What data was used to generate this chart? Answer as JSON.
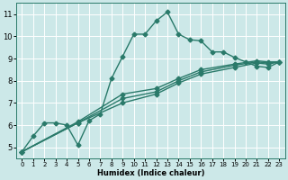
{
  "xlabel": "Humidex (Indice chaleur)",
  "bg_color": "#cce8e8",
  "grid_color": "#ffffff",
  "line_color": "#2a7a6a",
  "xlim": [
    -0.5,
    23.5
  ],
  "ylim": [
    4.5,
    11.5
  ],
  "xticks": [
    0,
    1,
    2,
    3,
    4,
    5,
    6,
    7,
    8,
    9,
    10,
    11,
    12,
    13,
    14,
    15,
    16,
    17,
    18,
    19,
    20,
    21,
    22,
    23
  ],
  "yticks": [
    5,
    6,
    7,
    8,
    9,
    10,
    11
  ],
  "series": [
    {
      "x": [
        0,
        1,
        2,
        3,
        4,
        5,
        6,
        7,
        8,
        9,
        10,
        11,
        12,
        13,
        14,
        15,
        16,
        17,
        18,
        19,
        20,
        21,
        22,
        23
      ],
      "y": [
        4.8,
        5.5,
        6.1,
        6.1,
        6.0,
        5.1,
        6.2,
        6.5,
        8.1,
        9.1,
        10.1,
        10.1,
        10.7,
        11.1,
        10.1,
        9.85,
        9.8,
        9.3,
        9.3,
        9.05,
        8.85,
        8.65,
        8.6,
        8.85
      ],
      "marker": true
    },
    {
      "x": [
        0,
        23
      ],
      "y": [
        4.8,
        8.85
      ],
      "marker": false
    },
    {
      "x": [
        0,
        23
      ],
      "y": [
        4.8,
        8.85
      ],
      "marker": false
    },
    {
      "x": [
        0,
        23
      ],
      "y": [
        4.8,
        8.85
      ],
      "marker": false
    }
  ],
  "line1_x": [
    0,
    1,
    2,
    3,
    4,
    5,
    6,
    7,
    8,
    9,
    10,
    11,
    12,
    13,
    14,
    15,
    16,
    17,
    18,
    19,
    20,
    21,
    22,
    23
  ],
  "line1_y": [
    4.8,
    5.5,
    6.1,
    6.1,
    6.0,
    5.1,
    6.2,
    6.5,
    8.1,
    9.1,
    10.1,
    10.1,
    10.7,
    11.1,
    10.1,
    9.85,
    9.8,
    9.3,
    9.3,
    9.05,
    8.85,
    8.65,
    8.6,
    8.85
  ],
  "line2_x": [
    0,
    5,
    9,
    12,
    14,
    16,
    19,
    21,
    22,
    23
  ],
  "line2_y": [
    4.8,
    6.1,
    7.0,
    7.4,
    7.9,
    8.3,
    8.6,
    8.8,
    8.75,
    8.85
  ],
  "line3_x": [
    0,
    5,
    9,
    12,
    14,
    16,
    19,
    21,
    22,
    23
  ],
  "line3_y": [
    4.8,
    6.1,
    7.2,
    7.5,
    8.0,
    8.4,
    8.7,
    8.85,
    8.8,
    8.85
  ],
  "line4_x": [
    0,
    5,
    9,
    12,
    14,
    16,
    19,
    21,
    22,
    23
  ],
  "line4_y": [
    4.8,
    6.15,
    7.4,
    7.65,
    8.1,
    8.5,
    8.75,
    8.9,
    8.85,
    8.85
  ]
}
